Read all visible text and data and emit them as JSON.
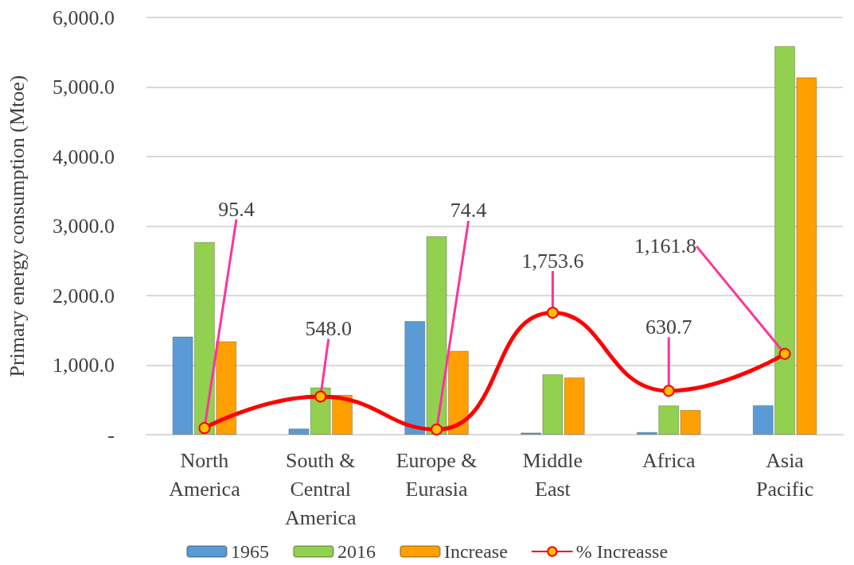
{
  "chart_data": {
    "type": "bar",
    "ylabel": "Primary energy consumption (Mtoe)",
    "categories": [
      "North\nAmerica",
      "South &\nCentral\nAmerica",
      "Europe &\nEurasia",
      "Middle\nEast",
      "Africa",
      "Asia\nPacific"
    ],
    "series": [
      {
        "name": "1965",
        "color": "#5b9bd5",
        "values": [
          1412,
          88,
          1634,
          30,
          38,
          424
        ]
      },
      {
        "name": "2016",
        "color": "#92d050",
        "values": [
          2771,
          679,
          2855,
          870,
          420,
          5590
        ]
      },
      {
        "name": "Increase",
        "color": "#ffa000",
        "values": [
          1344,
          573,
          1206,
          824,
          355,
          5139
        ]
      },
      {
        "name": "% Increasse",
        "type": "line",
        "color": "#ff0000",
        "marker": "circle",
        "values": [
          95.4,
          548.0,
          74.4,
          1753.6,
          630.7,
          1161.8
        ],
        "value_labels": [
          "95.4",
          "548.0",
          "74.4",
          "1,753.6",
          "630.7",
          "1,161.8"
        ]
      }
    ],
    "ylim": [
      0,
      6000
    ],
    "yticks": [
      {
        "value": 0,
        "label": "-"
      },
      {
        "value": 1000,
        "label": "1,000.0"
      },
      {
        "value": 2000,
        "label": "2,000.0"
      },
      {
        "value": 3000,
        "label": "3,000.0"
      },
      {
        "value": 4000,
        "label": "4,000.0"
      },
      {
        "value": 5000,
        "label": "5,000.0"
      },
      {
        "value": 6000,
        "label": "6,000.0"
      }
    ],
    "grid": "y",
    "legend": "bottom"
  }
}
